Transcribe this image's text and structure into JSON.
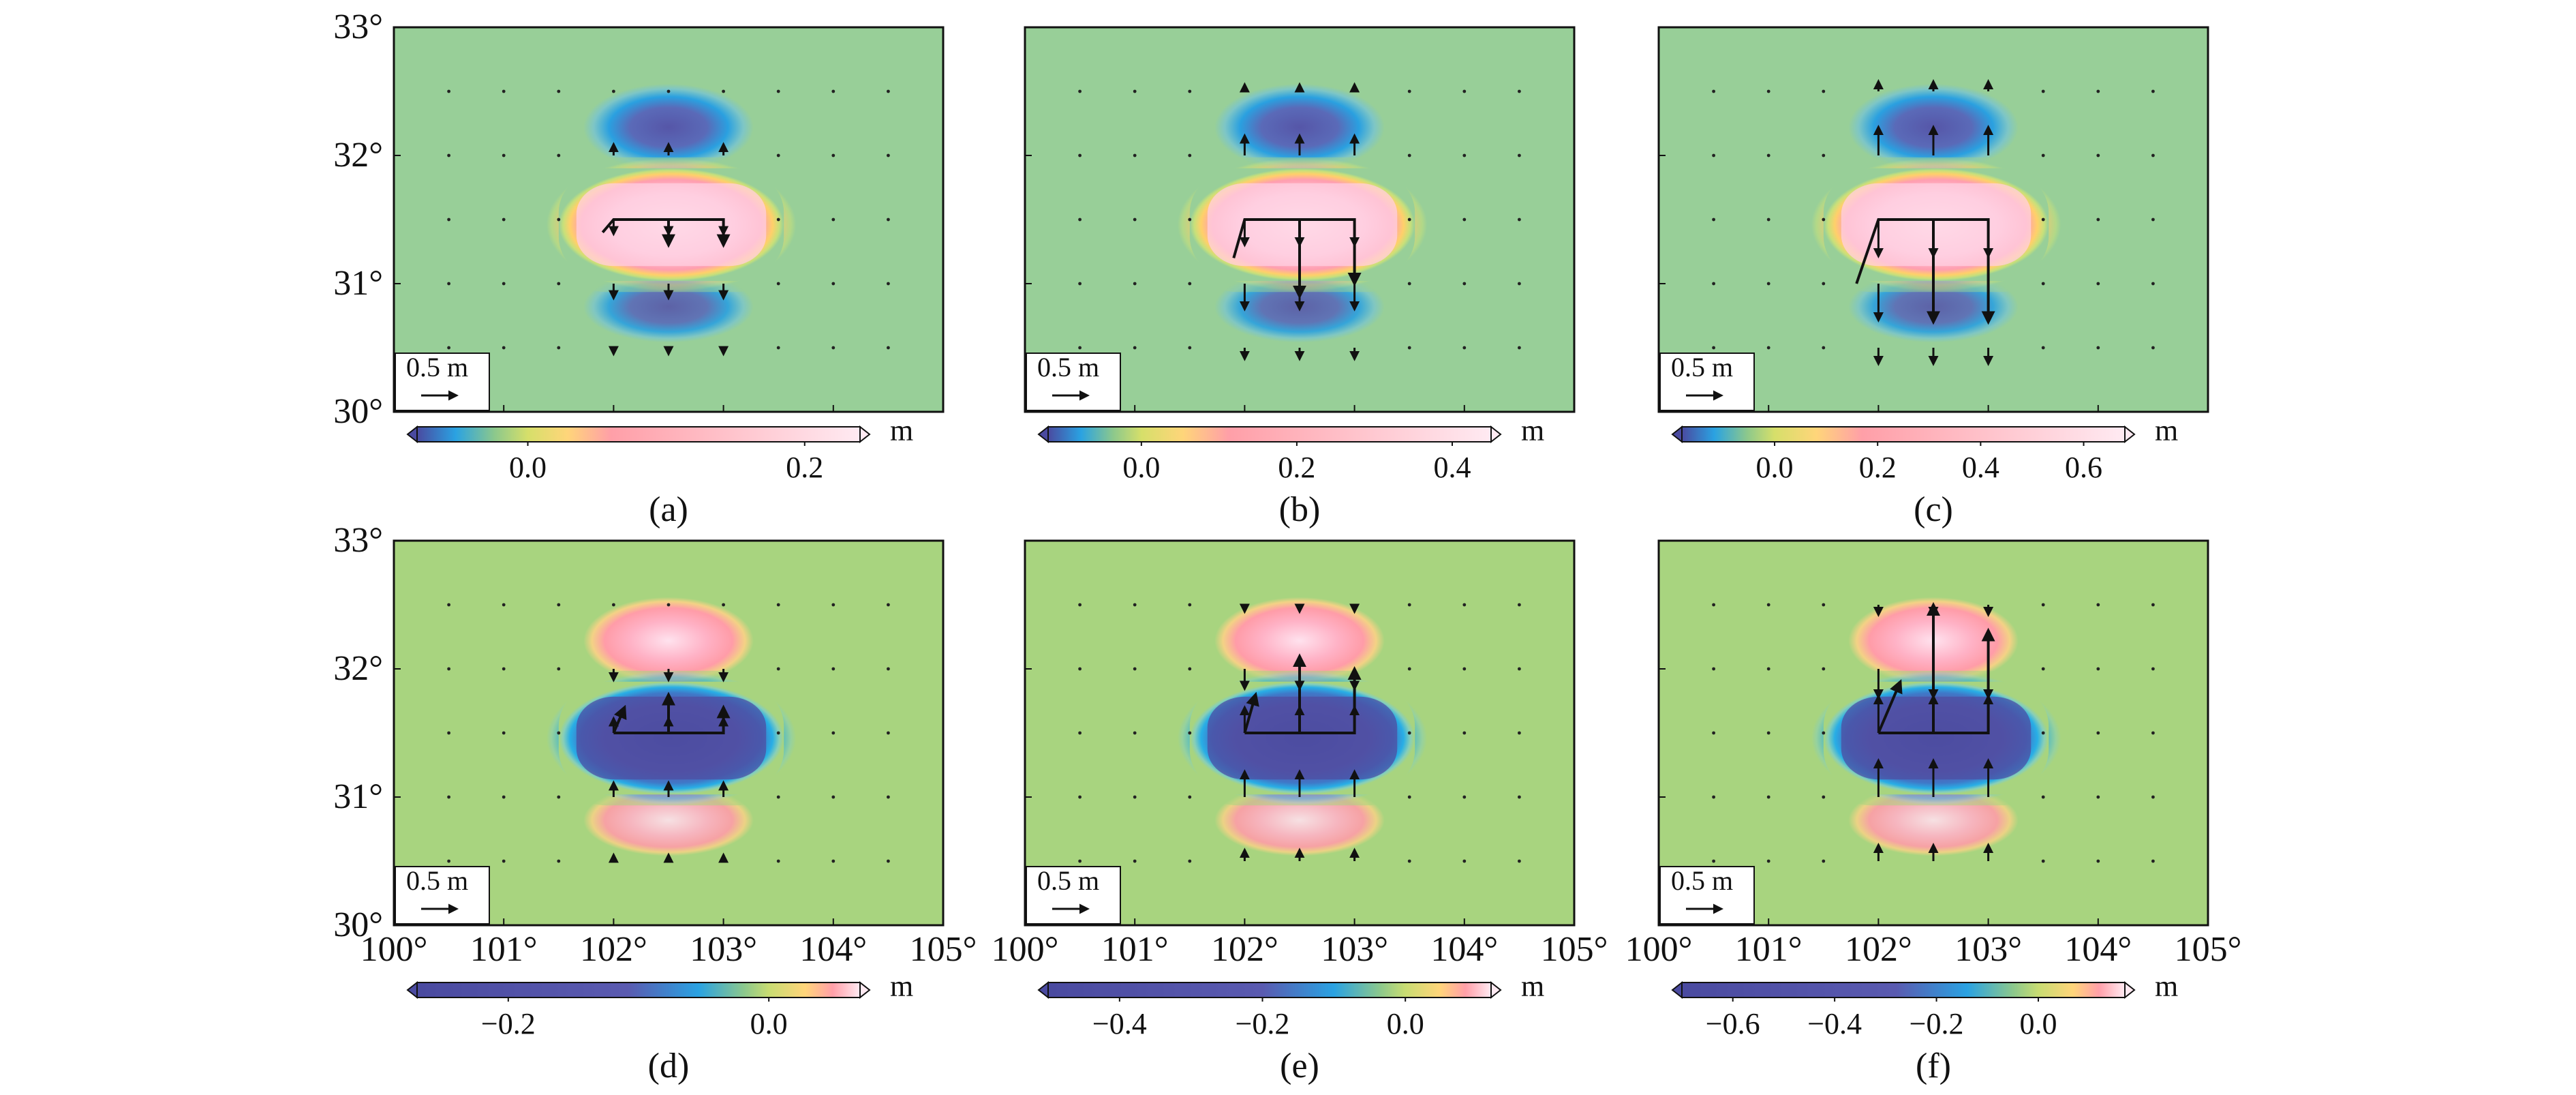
{
  "lat_ticks": [
    "30°",
    "31°",
    "32°",
    "33°"
  ],
  "lon_ticks": [
    "100°",
    "101°",
    "102°",
    "103°",
    "104°",
    "105°"
  ],
  "scale_label": "0.5 m",
  "colorbar_unit": "m",
  "colors": {
    "background_field": "#98cf98",
    "colormap": [
      "#4a4aa0",
      "#6a6ac0",
      "#2aa2e2",
      "#8cc88c",
      "#a2d086",
      "#d6df6a",
      "#ffd57a",
      "#ff9fa8",
      "#ffc6dc",
      "#ffeaf2"
    ]
  },
  "chart_data": [
    {
      "type": "heatmap",
      "label": "(a)",
      "extent": {
        "lon": [
          100,
          105
        ],
        "lat": [
          30,
          33
        ]
      },
      "colorbar": {
        "range": [
          -0.08,
          0.24
        ],
        "ticks": [
          0.0,
          0.2
        ],
        "tick_labels": [
          "0.0",
          "0.2"
        ]
      },
      "field": {
        "center": 0.2,
        "lobe": -0.07
      },
      "fault": {
        "segments": [
          [
            [
              101.9,
              31.4
            ],
            [
              102.0,
              31.5
            ],
            [
              103.0,
              31.5
            ],
            [
              103.0,
              31.3
            ]
          ],
          [
            [
              102.5,
              31.5
            ],
            [
              102.5,
              31.3
            ]
          ]
        ]
      },
      "arrow_amp": 0.2
    },
    {
      "type": "heatmap",
      "label": "(b)",
      "extent": {
        "lon": [
          100,
          105
        ],
        "lat": [
          30,
          33
        ]
      },
      "colorbar": {
        "range": [
          -0.12,
          0.45
        ],
        "ticks": [
          0.0,
          0.2,
          0.4
        ],
        "tick_labels": [
          "0.0",
          "0.2",
          "0.4"
        ]
      },
      "field": {
        "center": 0.42,
        "lobe": -0.11
      },
      "fault": {
        "segments": [
          [
            [
              101.9,
              31.2
            ],
            [
              102.0,
              31.5
            ],
            [
              103.0,
              31.5
            ],
            [
              103.0,
              31.0
            ]
          ],
          [
            [
              102.5,
              31.5
            ],
            [
              102.5,
              30.9
            ]
          ]
        ]
      },
      "arrow_amp": 0.35
    },
    {
      "type": "heatmap",
      "label": "(c)",
      "extent": {
        "lon": [
          100,
          105
        ],
        "lat": [
          30,
          33
        ]
      },
      "colorbar": {
        "range": [
          -0.18,
          0.68
        ],
        "ticks": [
          0.0,
          0.2,
          0.4,
          0.6
        ],
        "tick_labels": [
          "0.0",
          "0.2",
          "0.4",
          "0.6"
        ]
      },
      "field": {
        "center": 0.64,
        "lobe": -0.17
      },
      "fault": {
        "segments": [
          [
            [
              101.8,
              31.0
            ],
            [
              102.0,
              31.5
            ],
            [
              103.0,
              31.5
            ],
            [
              103.0,
              30.7
            ]
          ],
          [
            [
              102.5,
              31.5
            ],
            [
              102.5,
              30.7
            ]
          ]
        ]
      },
      "arrow_amp": 0.5
    },
    {
      "type": "heatmap",
      "label": "(d)",
      "extent": {
        "lon": [
          100,
          105
        ],
        "lat": [
          30,
          33
        ]
      },
      "colorbar": {
        "range": [
          -0.27,
          0.07
        ],
        "ticks": [
          -0.2,
          0.0
        ],
        "tick_labels": [
          "−0.2",
          "0.0"
        ]
      },
      "field": {
        "center": -0.25,
        "lobe": 0.06
      },
      "fault": {
        "segments": [
          [
            [
              102.0,
              31.5
            ],
            [
              103.0,
              31.5
            ],
            [
              103.0,
              31.7
            ]
          ],
          [
            [
              102.5,
              31.5
            ],
            [
              102.5,
              31.8
            ]
          ],
          [
            [
              102.0,
              31.5
            ],
            [
              102.1,
              31.7
            ]
          ]
        ]
      },
      "arrow_amp": -0.2
    },
    {
      "type": "heatmap",
      "label": "(e)",
      "extent": {
        "lon": [
          100,
          105
        ],
        "lat": [
          30,
          33
        ]
      },
      "colorbar": {
        "range": [
          -0.5,
          0.12
        ],
        "ticks": [
          -0.4,
          -0.2,
          0.0
        ],
        "tick_labels": [
          "−0.4",
          "−0.2",
          "0.0"
        ]
      },
      "field": {
        "center": -0.47,
        "lobe": 0.11
      },
      "fault": {
        "segments": [
          [
            [
              102.0,
              31.5
            ],
            [
              103.0,
              31.5
            ],
            [
              103.0,
              32.0
            ]
          ],
          [
            [
              102.5,
              31.5
            ],
            [
              102.5,
              32.1
            ]
          ],
          [
            [
              102.0,
              31.5
            ],
            [
              102.1,
              31.8
            ]
          ]
        ]
      },
      "arrow_amp": -0.35
    },
    {
      "type": "heatmap",
      "label": "(f)",
      "extent": {
        "lon": [
          100,
          105
        ],
        "lat": [
          30,
          33
        ]
      },
      "colorbar": {
        "range": [
          -0.7,
          0.17
        ],
        "ticks": [
          -0.6,
          -0.4,
          -0.2,
          0.0
        ],
        "tick_labels": [
          "−0.6",
          "−0.4",
          "−0.2",
          "0.0"
        ]
      },
      "field": {
        "center": -0.66,
        "lobe": 0.16
      },
      "fault": {
        "segments": [
          [
            [
              102.0,
              31.5
            ],
            [
              103.0,
              31.5
            ],
            [
              103.0,
              32.3
            ]
          ],
          [
            [
              102.5,
              31.5
            ],
            [
              102.5,
              32.5
            ]
          ],
          [
            [
              102.0,
              31.5
            ],
            [
              102.2,
              31.9
            ]
          ]
        ]
      },
      "arrow_amp": -0.5
    }
  ]
}
